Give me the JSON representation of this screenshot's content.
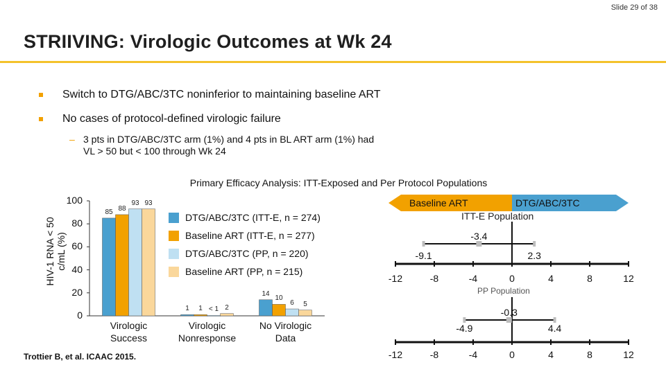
{
  "slide": {
    "number_text": "Slide 29 of 38"
  },
  "title": "STRIIVING: Virologic Outcomes at Wk 24",
  "bullets": [
    "Switch to DTG/ABC/3TC noninferior to maintaining baseline ART",
    "No cases of protocol-defined virologic failure"
  ],
  "sub_bullet": {
    "dash": "–",
    "line1": "3 pts in DTG/ABC/3TC arm (1%) and 4 pts in BL ART arm (1%) had",
    "line2": "VL > 50 but < 100 through Wk 24"
  },
  "analysis_title": "Primary Efficacy Analysis: ITT-Exposed and Per Protocol Populations",
  "citation": "Trottier B, et al. ICAAC 2015.",
  "colors": {
    "accent_rule": "#f4c22b",
    "bullet": "#f2a100",
    "series": [
      "#4aa0cf",
      "#f2a100",
      "#bfe0f2",
      "#fad79b"
    ],
    "arrow_left": "#f2a100",
    "arrow_right": "#4aa0cf",
    "ci_marker": "#bdbdbd"
  },
  "chart_data": [
    {
      "type": "bar",
      "ylabel_line1": "HIV-1 RNA < 50",
      "ylabel_line2": "c/mL (%)",
      "ylim": [
        0,
        100
      ],
      "yticks": [
        "0",
        "20",
        "40",
        "60",
        "80",
        "100"
      ],
      "categories": [
        [
          "Virologic",
          "Success"
        ],
        [
          "Virologic",
          "Nonresponse"
        ],
        [
          "No Virologic",
          "Data"
        ]
      ],
      "series": [
        {
          "name": "DTG/ABC/3TC (ITT-E, n = 274)",
          "values": [
            85,
            1,
            14
          ],
          "labels": [
            "85",
            "1",
            "14"
          ]
        },
        {
          "name": "Baseline ART (ITT-E, n = 277)",
          "values": [
            88,
            1,
            10
          ],
          "labels": [
            "88",
            "1",
            "10"
          ]
        },
        {
          "name": "DTG/ABC/3TC (PP, n = 220)",
          "values": [
            93,
            0.4,
            6
          ],
          "labels": [
            "93",
            "< 1",
            "6"
          ]
        },
        {
          "name": "Baseline ART (PP, n = 215)",
          "values": [
            93,
            2,
            5
          ],
          "labels": [
            "93",
            "2",
            "5"
          ]
        }
      ],
      "legend_position": "right",
      "grid": false
    },
    {
      "type": "forest",
      "arrow_left_label": "Baseline ART",
      "arrow_right_label": "DTG/ABC/3TC",
      "xlim": [
        -12,
        12
      ],
      "xticks": [
        "-12",
        "-8",
        "-4",
        "0",
        "4",
        "8",
        "12"
      ],
      "populations": [
        {
          "label": "ITT-E Population",
          "estimate": -3.4,
          "lower": -9.1,
          "upper": 2.3,
          "estimate_text": "-3.4",
          "lower_text": "-9.1",
          "upper_text": "2.3"
        },
        {
          "label": "PP Population",
          "estimate": -0.3,
          "lower": -4.9,
          "upper": 4.4,
          "estimate_text": "-0.3",
          "lower_text": "-4.9",
          "upper_text": "4.4"
        }
      ]
    }
  ]
}
